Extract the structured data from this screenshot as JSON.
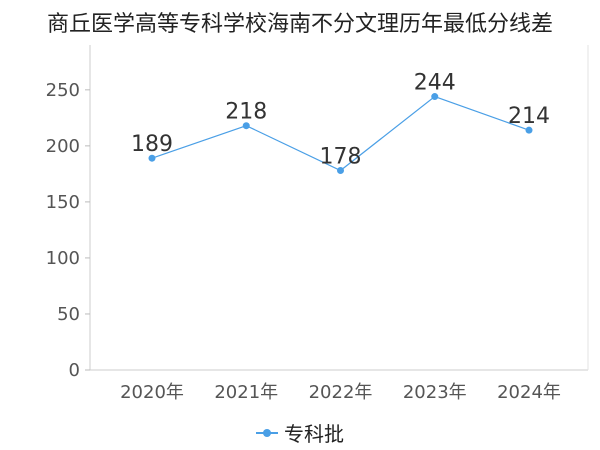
{
  "chart_data": {
    "type": "line",
    "title": "商丘医学高等专科学校海南不分文理历年最低分线差",
    "categories": [
      "2020年",
      "2021年",
      "2022年",
      "2023年",
      "2024年"
    ],
    "series": [
      {
        "name": "专科批",
        "values": [
          189,
          218,
          178,
          244,
          214
        ],
        "color": "#4a9fe6"
      }
    ],
    "yticks": [
      0,
      50,
      100,
      150,
      200,
      250
    ],
    "ylim": [
      0,
      290
    ],
    "grid": false,
    "legend": "bottom"
  }
}
